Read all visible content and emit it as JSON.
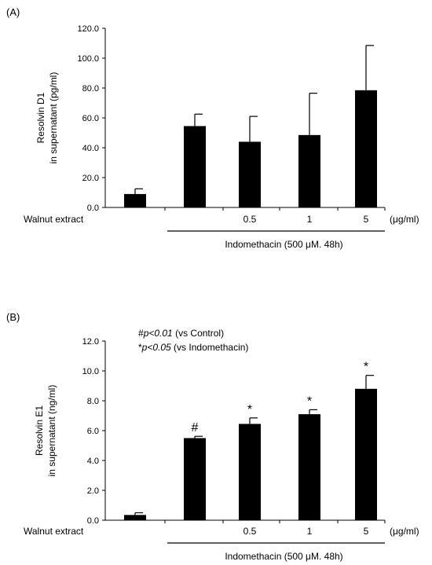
{
  "chart_data": [
    {
      "type": "bar",
      "panel_label": "(A)",
      "ylabel_lines": [
        "Resolvin D1",
        "in supernatant (pg/ml)"
      ],
      "yticks": [
        "0.0",
        "20.0",
        "40.0",
        "60.0",
        "80.0",
        "100.0",
        "120.0"
      ],
      "ylim": [
        0,
        120
      ],
      "row_label": "Walnut extract",
      "categories": [
        "",
        "",
        "0.5",
        "1",
        "5"
      ],
      "unit_label": "(μg/ml)",
      "bracket_label": "Indomethacin (500 μM. 48h)",
      "values": [
        9,
        54.5,
        44,
        48.5,
        78.5
      ],
      "errors": [
        3.5,
        8,
        17,
        28,
        30
      ],
      "markers": [
        "",
        "",
        "",
        "",
        ""
      ],
      "notes": [],
      "bar_color": "#000000",
      "grid": false
    },
    {
      "type": "bar",
      "panel_label": "(B)",
      "ylabel_lines": [
        "Resolvin E1",
        "in supernatant (ng/ml)"
      ],
      "yticks": [
        "0.0",
        "2.0",
        "4.0",
        "6.0",
        "8.0",
        "10.0",
        "12.0"
      ],
      "ylim": [
        0,
        12
      ],
      "row_label": "Walnut extract",
      "categories": [
        "",
        "",
        "0.5",
        "1",
        "5"
      ],
      "unit_label": "(μg/ml)",
      "bracket_label": "Indomethacin (500 μM. 48h)",
      "values": [
        0.35,
        5.5,
        6.45,
        7.1,
        8.8
      ],
      "errors": [
        0.15,
        0.12,
        0.4,
        0.3,
        0.9
      ],
      "markers": [
        "",
        "#",
        "*",
        "*",
        "*"
      ],
      "notes": [
        {
          "sym": "#",
          "p": "p<0.01",
          "rest": " (vs Control)"
        },
        {
          "sym": "*",
          "p": "p<0.05",
          "rest": " (vs Indomethacin)"
        }
      ],
      "bar_color": "#000000",
      "grid": false
    }
  ]
}
